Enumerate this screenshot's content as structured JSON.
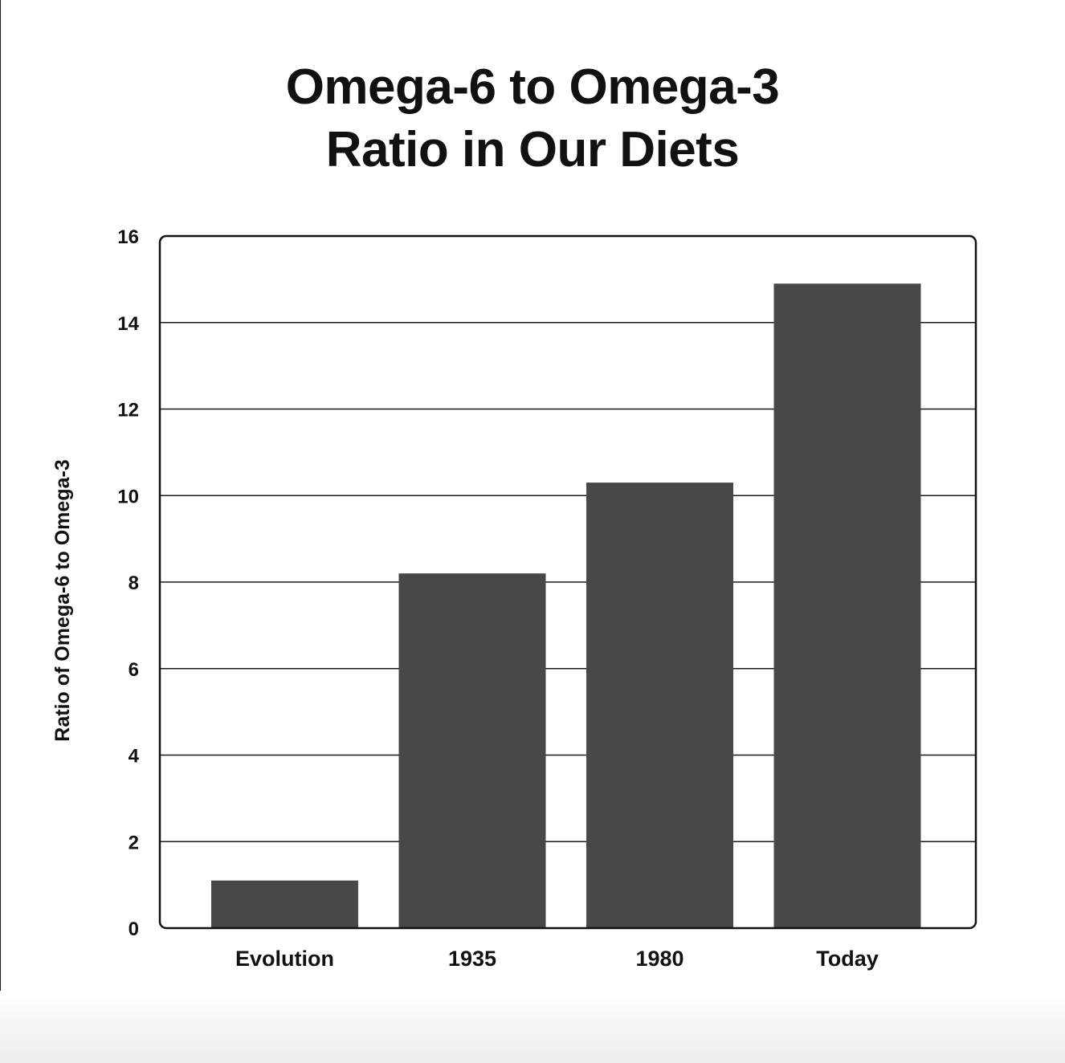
{
  "colors": {
    "bar": "#484848",
    "grid": "#1a1a1a",
    "frame": "#111111",
    "text": "#111111"
  },
  "chart_data": {
    "type": "bar",
    "title_lines": [
      "Omega-6 to Omega-3",
      "Ratio in Our Diets"
    ],
    "categories": [
      "Evolution",
      "1935",
      "1980",
      "Today"
    ],
    "values": [
      1.1,
      8.2,
      10.3,
      14.9
    ],
    "xlabel": "",
    "ylabel": "Ratio of Omega-6 to Omega-3",
    "ylim": [
      0,
      16
    ],
    "yticks": [
      "0",
      "2",
      "4",
      "6",
      "8",
      "10",
      "12",
      "14",
      "16"
    ],
    "grid": "horizontal",
    "legend": "none"
  }
}
